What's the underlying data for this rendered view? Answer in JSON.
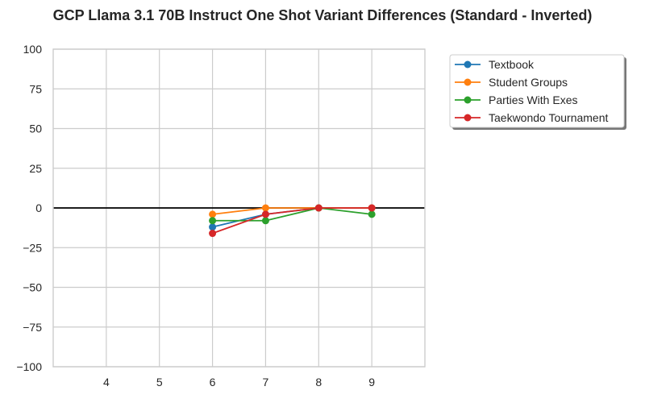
{
  "chart_data": {
    "type": "line",
    "title": "GCP Llama 3.1 70B Instruct One Shot Variant Differences (Standard - Inverted)",
    "xlabel": "",
    "ylabel": "",
    "xlim": [
      3,
      10
    ],
    "ylim": [
      -100,
      100
    ],
    "xticks": [
      4,
      5,
      6,
      7,
      8,
      9
    ],
    "yticks": [
      100,
      75,
      50,
      25,
      0,
      -25,
      -50,
      -75,
      -100
    ],
    "ytick_labels": [
      "100",
      "75",
      "50",
      "25",
      "0",
      "−25",
      "−50",
      "−75",
      "−100"
    ],
    "grid": true,
    "reference_line": 0,
    "legend_position": "outside-top-right",
    "series": [
      {
        "name": "Textbook",
        "color": "#1f77b4",
        "x": [
          6,
          7,
          8,
          9
        ],
        "y": [
          -12,
          -4,
          0,
          0
        ]
      },
      {
        "name": "Student Groups",
        "color": "#ff7f0e",
        "x": [
          6,
          7,
          8,
          9
        ],
        "y": [
          -4,
          0,
          0,
          0
        ]
      },
      {
        "name": "Parties With Exes",
        "color": "#2ca02c",
        "x": [
          6,
          7,
          8,
          9
        ],
        "y": [
          -8,
          -8,
          0,
          -4
        ]
      },
      {
        "name": "Taekwondo Tournament",
        "color": "#d62728",
        "x": [
          6,
          7,
          8,
          9
        ],
        "y": [
          -16,
          -4,
          0,
          0
        ]
      }
    ]
  }
}
